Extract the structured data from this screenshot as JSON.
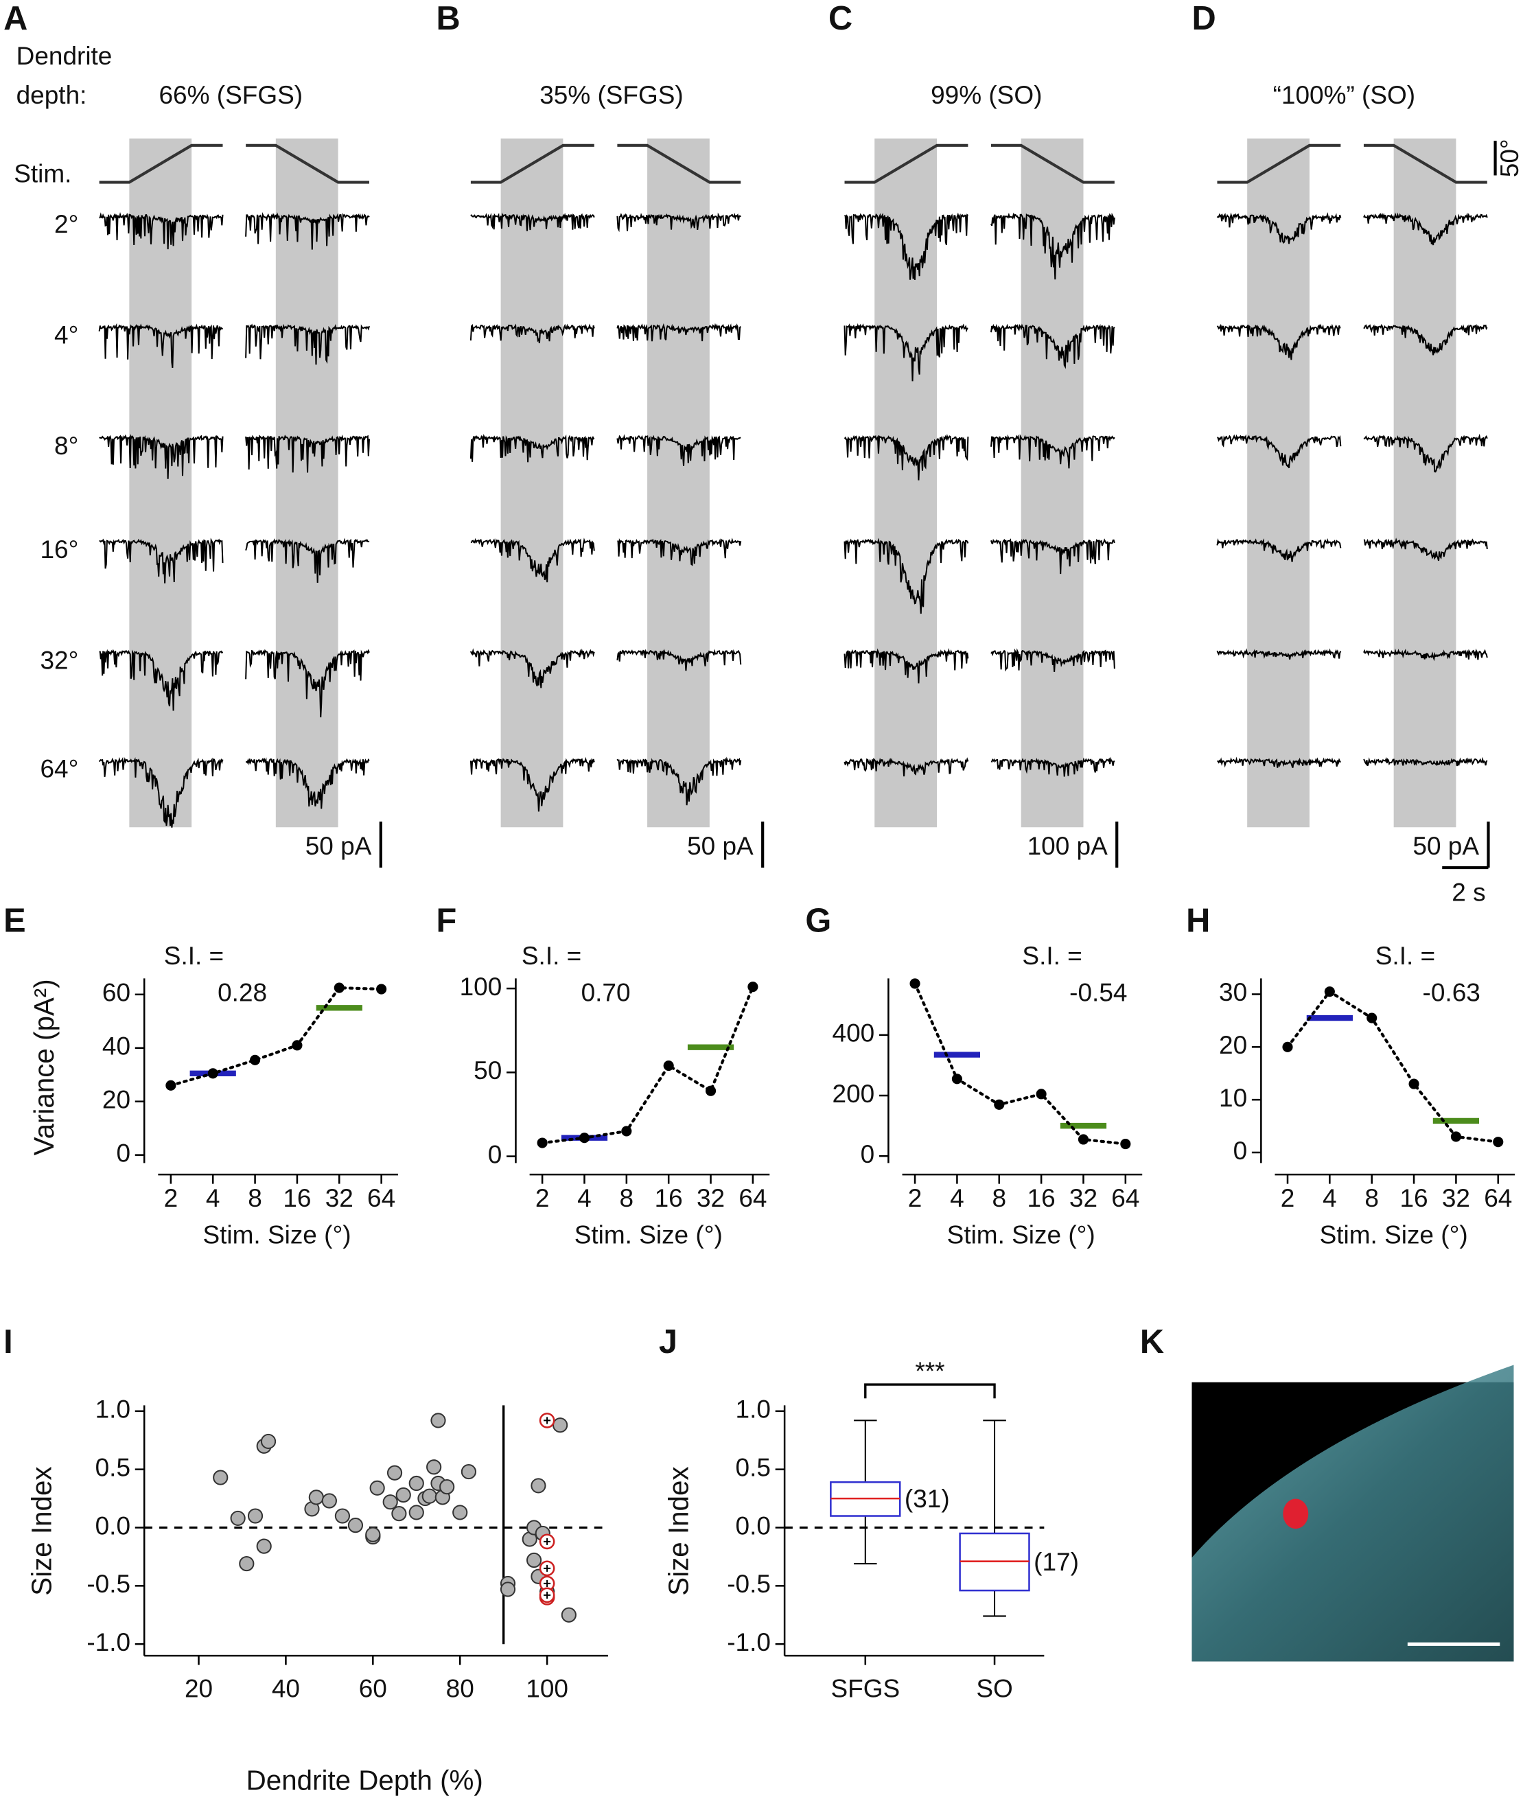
{
  "panel_labels": [
    "A",
    "B",
    "C",
    "D",
    "E",
    "F",
    "G",
    "H",
    "I",
    "J",
    "K"
  ],
  "traces": {
    "depth_label": [
      "Dendrite",
      "depth:"
    ],
    "stim_label": "Stim.",
    "stim_scale": "50°",
    "sizes": [
      "2°",
      "4°",
      "8°",
      "16°",
      "32°",
      "64°"
    ],
    "time_scale": "2 s",
    "panels": [
      {
        "title": "66% (SFGS)",
        "current_scale": "50 pA"
      },
      {
        "title": "35% (SFGS)",
        "current_scale": "50 pA"
      },
      {
        "title": "99% (SO)",
        "current_scale": "100 pA"
      },
      {
        "title": "“100%” (SO)",
        "current_scale": "50 pA"
      }
    ]
  },
  "chart_data": [
    {
      "type": "line",
      "annotations": [
        "S.I. =",
        "0.28"
      ],
      "x_label": "Stim. Size (°)",
      "y_label": "Variance (pA²)",
      "categories": [
        "2",
        "4",
        "8",
        "16",
        "32",
        "64"
      ],
      "series": [
        {
          "color": "#000000",
          "values": [
            26,
            30.5,
            35.5,
            41,
            62.5,
            62
          ]
        }
      ],
      "means": {
        "categories": [
          "4",
          "32"
        ],
        "values": [
          30.5,
          55
        ],
        "colors": [
          "#2222bb",
          "#4c8c1c"
        ]
      },
      "ylim": [
        -3,
        66
      ],
      "yticks": [
        0,
        20,
        40,
        60
      ]
    },
    {
      "type": "line",
      "annotations": [
        "S.I. =",
        "0.70"
      ],
      "x_label": "Stim. Size (°)",
      "categories": [
        "2",
        "4",
        "8",
        "16",
        "32",
        "64"
      ],
      "series": [
        {
          "color": "#000000",
          "values": [
            8,
            11,
            15,
            54,
            39,
            101
          ]
        }
      ],
      "means": {
        "categories": [
          "4",
          "32"
        ],
        "values": [
          11,
          65
        ],
        "colors": [
          "#2222bb",
          "#4c8c1c"
        ]
      },
      "ylim": [
        -4,
        106
      ],
      "yticks": [
        0,
        50,
        100
      ]
    },
    {
      "type": "line",
      "annotations": [
        "S.I. =",
        "-0.54"
      ],
      "x_label": "Stim. Size (°)",
      "categories": [
        "2",
        "4",
        "8",
        "16",
        "32",
        "64"
      ],
      "series": [
        {
          "color": "#000000",
          "values": [
            570,
            255,
            170,
            205,
            55,
            40
          ]
        }
      ],
      "means": {
        "categories": [
          "4",
          "32"
        ],
        "values": [
          335,
          100
        ],
        "colors": [
          "#2222bb",
          "#4c8c1c"
        ]
      },
      "ylim": [
        -23,
        587
      ],
      "yticks": [
        0,
        200,
        400
      ]
    },
    {
      "type": "line",
      "annotations": [
        "S.I. =",
        "-0.63"
      ],
      "x_label": "Stim. Size (°)",
      "categories": [
        "2",
        "4",
        "8",
        "16",
        "32",
        "64"
      ],
      "series": [
        {
          "color": "#000000",
          "values": [
            20,
            30.5,
            25.5,
            13,
            3,
            2
          ]
        }
      ],
      "means": {
        "categories": [
          "4",
          "32"
        ],
        "values": [
          25.5,
          6
        ],
        "colors": [
          "#2222bb",
          "#4c8c1c"
        ]
      },
      "ylim": [
        -2,
        33
      ],
      "yticks": [
        0,
        10,
        20,
        30
      ]
    },
    {
      "type": "scatter",
      "x_label": "Dendrite Depth (%)",
      "y_label": "Size Index",
      "series": [
        {
          "color": "#b0b0b0",
          "x": [
            25,
            29,
            31,
            33,
            35,
            36,
            35,
            46,
            47,
            50,
            53,
            56,
            60,
            61,
            60,
            64,
            65,
            66,
            67,
            70,
            70,
            72,
            73,
            74,
            75,
            75,
            76,
            77,
            80,
            82,
            60
          ],
          "values": [
            0.43,
            0.08,
            -0.31,
            0.1,
            0.7,
            0.74,
            -0.16,
            0.16,
            0.26,
            0.23,
            0.1,
            0.02,
            -0.07,
            0.34,
            -0.08,
            0.22,
            0.47,
            0.12,
            0.28,
            0.38,
            0.13,
            0.25,
            0.27,
            0.52,
            0.38,
            0.92,
            0.26,
            0.35,
            0.13,
            0.48,
            -0.06
          ]
        },
        {
          "color": "#b0b0b0",
          "x": [
            91,
            91,
            96,
            97,
            98,
            97,
            99,
            98,
            100,
            103,
            105
          ],
          "values": [
            -0.48,
            -0.53,
            -0.1,
            0.0,
            0.36,
            -0.28,
            -0.05,
            -0.42,
            -0.55,
            0.88,
            -0.75
          ]
        },
        {
          "color": "#cc2020",
          "marker": "circled-plus",
          "x": [
            100,
            100,
            100,
            100,
            100,
            100
          ],
          "values": [
            0.92,
            -0.12,
            -0.35,
            -0.48,
            -0.6,
            -0.58
          ]
        }
      ],
      "hline": 0,
      "vline": 90,
      "xlim": [
        7.5,
        114
      ],
      "xticks": [
        20,
        40,
        60,
        80,
        100
      ],
      "ylim": [
        -1.1,
        1.05
      ],
      "yticks": [
        {
          "value": 1,
          "label": "1.0"
        },
        {
          "value": 0.5,
          "label": "0.5"
        },
        {
          "value": 0,
          "label": "0.0"
        },
        {
          "value": -0.5,
          "label": "-0.5"
        },
        {
          "value": -1,
          "label": "-1.0"
        }
      ]
    },
    {
      "type": "box",
      "y_label": "Size Index",
      "categories": [
        "SFGS",
        "SO"
      ],
      "min": [
        -0.31,
        -0.76
      ],
      "q1": [
        0.1,
        -0.54
      ],
      "median": [
        0.25,
        -0.29
      ],
      "q3": [
        0.39,
        -0.05
      ],
      "max": [
        0.92,
        0.92
      ],
      "n_labels": [
        "(31)",
        "(17)"
      ],
      "box_color": "#3030d0",
      "median_color": "#e02020",
      "significance": "***",
      "hline": 0,
      "ylim": [
        -1.1,
        1.05
      ],
      "yticks": [
        {
          "value": 1,
          "label": "1.0"
        },
        {
          "value": 0.5,
          "label": "0.5"
        },
        {
          "value": 0,
          "label": "0.0"
        },
        {
          "value": -0.5,
          "label": "-0.5"
        },
        {
          "value": -1,
          "label": "-1.0"
        }
      ]
    }
  ]
}
